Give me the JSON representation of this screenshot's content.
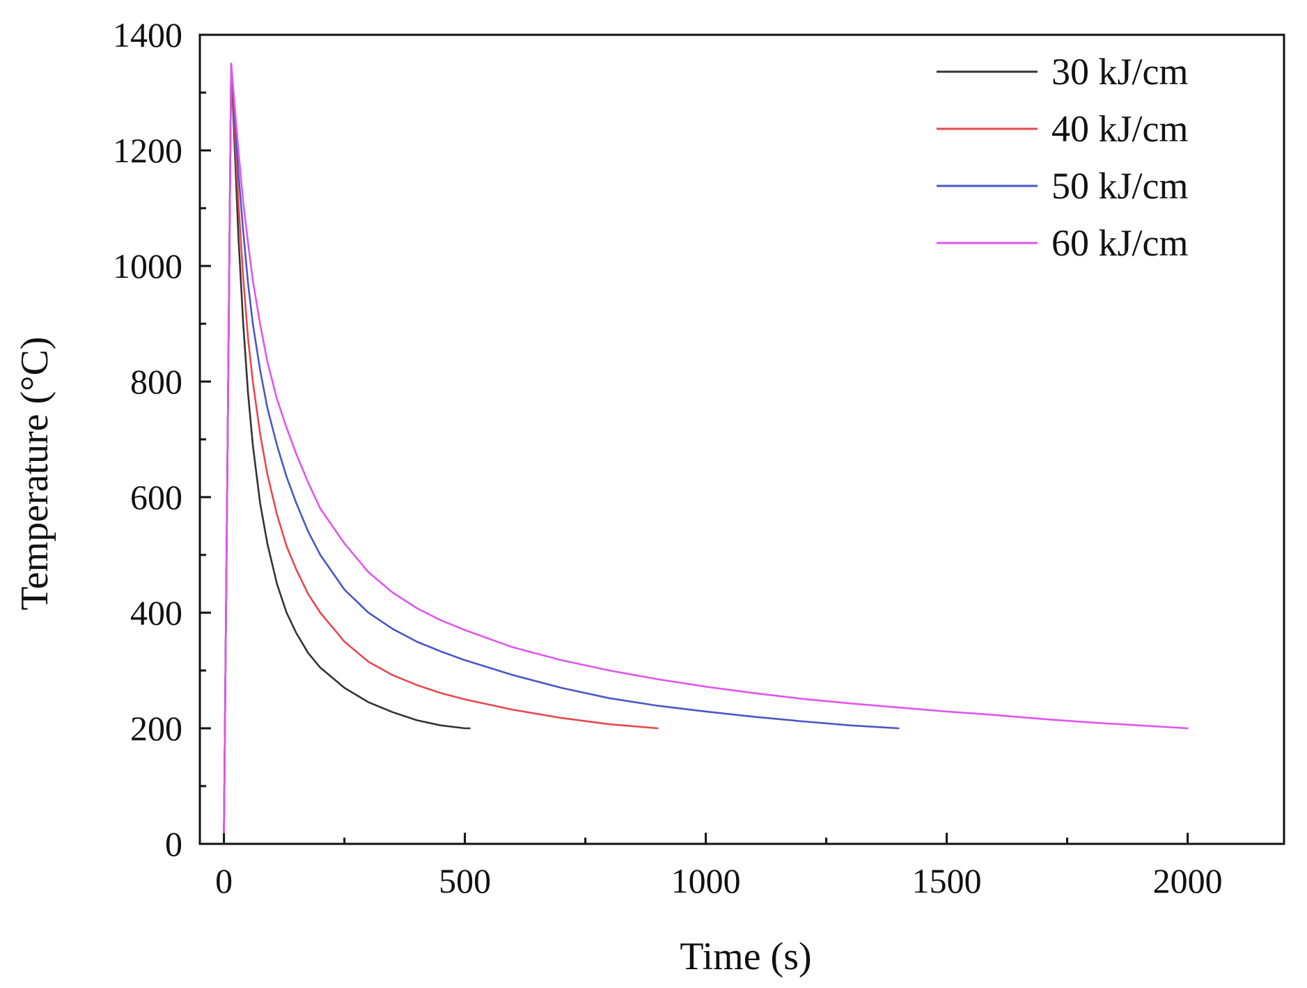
{
  "chart_data": {
    "type": "line",
    "title": "",
    "xlabel": "Time (s)",
    "ylabel": "Temperature (°C)",
    "xlim": [
      -50,
      2200
    ],
    "ylim": [
      0,
      1400
    ],
    "x_ticks": [
      0,
      500,
      1000,
      1500,
      2000
    ],
    "x_tick_labels": [
      "0",
      "500",
      "1000",
      "1500",
      "2000"
    ],
    "x_minor_ticks": [
      250,
      750,
      1250,
      1750
    ],
    "y_ticks": [
      0,
      200,
      400,
      600,
      800,
      1000,
      1200,
      1400
    ],
    "y_tick_labels": [
      "0",
      "200",
      "400",
      "600",
      "800",
      "1000",
      "1200",
      "1400"
    ],
    "y_minor_ticks": [
      100,
      300,
      500,
      700,
      900,
      1100,
      1300
    ],
    "grid": false,
    "legend_position": "top-right",
    "series": [
      {
        "name": "30 kJ/cm",
        "color": "#333333",
        "x": [
          0,
          15,
          30,
          40,
          50,
          60,
          75,
          90,
          110,
          130,
          150,
          175,
          200,
          250,
          300,
          350,
          400,
          450,
          500,
          510
        ],
        "y": [
          20,
          1350,
          1050,
          900,
          780,
          690,
          590,
          520,
          450,
          400,
          365,
          330,
          305,
          270,
          245,
          228,
          214,
          205,
          200,
          200
        ]
      },
      {
        "name": "40 kJ/cm",
        "color": "#e8474d",
        "x": [
          0,
          15,
          30,
          40,
          50,
          60,
          75,
          90,
          110,
          130,
          150,
          175,
          200,
          250,
          300,
          350,
          400,
          450,
          500,
          600,
          700,
          800,
          900
        ],
        "y": [
          20,
          1350,
          1110,
          980,
          875,
          800,
          710,
          640,
          570,
          515,
          475,
          432,
          400,
          350,
          315,
          292,
          275,
          261,
          250,
          232,
          218,
          207,
          200
        ]
      },
      {
        "name": "50 kJ/cm",
        "color": "#4a56c8",
        "x": [
          0,
          15,
          30,
          40,
          50,
          60,
          75,
          90,
          110,
          130,
          150,
          175,
          200,
          250,
          300,
          350,
          400,
          450,
          500,
          600,
          700,
          800,
          900,
          1000,
          1100,
          1200,
          1300,
          1400
        ],
        "y": [
          20,
          1350,
          1160,
          1060,
          970,
          900,
          820,
          755,
          690,
          635,
          590,
          540,
          500,
          440,
          400,
          372,
          350,
          333,
          318,
          292,
          270,
          252,
          239,
          229,
          220,
          212,
          205,
          200
        ]
      },
      {
        "name": "60 kJ/cm",
        "color": "#e055ee",
        "x": [
          0,
          15,
          30,
          40,
          50,
          60,
          75,
          90,
          110,
          130,
          150,
          175,
          200,
          250,
          300,
          350,
          400,
          450,
          500,
          600,
          700,
          800,
          900,
          1000,
          1100,
          1200,
          1300,
          1400,
          1500,
          1600,
          1700,
          1800,
          1900,
          2000
        ],
        "y": [
          20,
          1350,
          1200,
          1110,
          1040,
          975,
          900,
          835,
          770,
          720,
          675,
          625,
          580,
          520,
          470,
          435,
          408,
          387,
          370,
          340,
          318,
          300,
          285,
          272,
          261,
          251,
          243,
          236,
          229,
          223,
          216,
          210,
          205,
          200
        ]
      }
    ]
  }
}
